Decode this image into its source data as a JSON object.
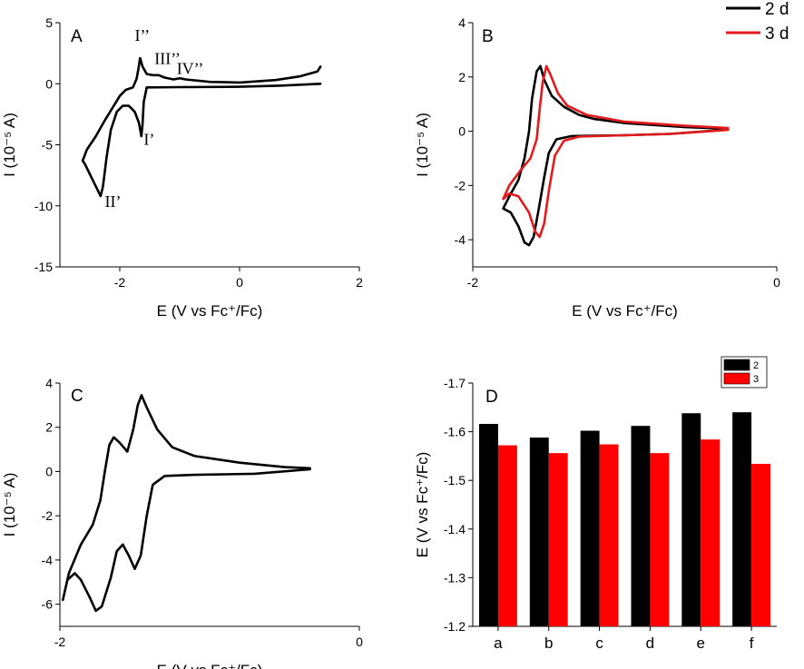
{
  "chart_data": [
    {
      "panel": "A",
      "type": "line",
      "xlabel": "E (V vs Fc⁺/Fc)",
      "ylabel": "I (10⁻⁵ A)",
      "xlim": [
        -3.0,
        2.0
      ],
      "ylim": [
        -15,
        5
      ],
      "xticks": [
        -2,
        0,
        2
      ],
      "xtick_labels": [
        "-2",
        "0",
        "2"
      ],
      "yticks": [
        5,
        0,
        -5,
        -10,
        -15
      ],
      "ytick_labels": [
        "5",
        "0",
        "-5",
        "-10",
        "-15"
      ],
      "annotations": [
        {
          "text": "I’’",
          "x": -1.75,
          "y": 3.5
        },
        {
          "text": "III’’",
          "x": -1.42,
          "y": 1.6
        },
        {
          "text": "IV’’",
          "x": -1.05,
          "y": 0.8
        },
        {
          "text": "I’",
          "x": -1.6,
          "y": -5.0
        },
        {
          "text": "II’",
          "x": -2.25,
          "y": -10.1
        }
      ],
      "series": [
        {
          "name": "CV",
          "color": "#000000",
          "points": [
            [
              1.35,
              0.0
            ],
            [
              0.7,
              -0.15
            ],
            [
              0.0,
              -0.25
            ],
            [
              -1.0,
              -0.28
            ],
            [
              -1.55,
              -0.3
            ],
            [
              -1.6,
              -1.5
            ],
            [
              -1.62,
              -3.3
            ],
            [
              -1.64,
              -4.3
            ],
            [
              -1.68,
              -3.2
            ],
            [
              -1.75,
              -2.3
            ],
            [
              -1.85,
              -1.8
            ],
            [
              -1.95,
              -1.8
            ],
            [
              -2.05,
              -2.3
            ],
            [
              -2.15,
              -3.8
            ],
            [
              -2.22,
              -6.0
            ],
            [
              -2.28,
              -8.4
            ],
            [
              -2.32,
              -9.2
            ],
            [
              -2.38,
              -8.6
            ],
            [
              -2.48,
              -7.6
            ],
            [
              -2.58,
              -6.6
            ],
            [
              -2.62,
              -6.3
            ],
            [
              -2.55,
              -5.4
            ],
            [
              -2.4,
              -4.3
            ],
            [
              -2.25,
              -3.0
            ],
            [
              -2.1,
              -1.8
            ],
            [
              -2.0,
              -1.0
            ],
            [
              -1.9,
              -0.5
            ],
            [
              -1.78,
              -0.3
            ],
            [
              -1.72,
              0.4
            ],
            [
              -1.69,
              1.2
            ],
            [
              -1.66,
              2.1
            ],
            [
              -1.62,
              1.4
            ],
            [
              -1.55,
              0.8
            ],
            [
              -1.45,
              0.7
            ],
            [
              -1.35,
              0.7
            ],
            [
              -1.25,
              0.5
            ],
            [
              -1.1,
              0.35
            ],
            [
              -1.0,
              0.45
            ],
            [
              -0.9,
              0.35
            ],
            [
              -0.5,
              0.15
            ],
            [
              0.0,
              0.1
            ],
            [
              0.6,
              0.3
            ],
            [
              1.0,
              0.6
            ],
            [
              1.3,
              1.0
            ],
            [
              1.35,
              1.4
            ]
          ]
        }
      ]
    },
    {
      "panel": "B",
      "type": "line",
      "xlabel": "E (V vs Fc⁺/Fc)",
      "ylabel": "I (10⁻⁵ A)",
      "xlim": [
        -2.0,
        0.0
      ],
      "ylim": [
        -5,
        4
      ],
      "xticks": [
        -2,
        0
      ],
      "xtick_labels": [
        "-2",
        "0"
      ],
      "yticks": [
        4,
        2,
        0,
        -2,
        -4
      ],
      "ytick_labels": [
        "4",
        "2",
        "0",
        "-2",
        "-4"
      ],
      "legend": {
        "position": "top-right",
        "entries": [
          {
            "label": "2 d",
            "color": "#000000"
          },
          {
            "label": "3 d",
            "color": "#e31a1c"
          }
        ]
      },
      "series": [
        {
          "name": "2 d",
          "color": "#000000",
          "points": [
            [
              -0.35,
              0.05
            ],
            [
              -0.7,
              -0.1
            ],
            [
              -1.0,
              -0.15
            ],
            [
              -1.35,
              -0.18
            ],
            [
              -1.45,
              -0.3
            ],
            [
              -1.5,
              -0.8
            ],
            [
              -1.53,
              -1.7
            ],
            [
              -1.57,
              -3.0
            ],
            [
              -1.6,
              -3.9
            ],
            [
              -1.63,
              -4.2
            ],
            [
              -1.66,
              -4.1
            ],
            [
              -1.7,
              -3.5
            ],
            [
              -1.75,
              -3.0
            ],
            [
              -1.8,
              -2.85
            ],
            [
              -1.75,
              -2.3
            ],
            [
              -1.7,
              -1.8
            ],
            [
              -1.66,
              -1.0
            ],
            [
              -1.63,
              0.0
            ],
            [
              -1.61,
              1.2
            ],
            [
              -1.58,
              2.2
            ],
            [
              -1.555,
              2.4
            ],
            [
              -1.53,
              1.9
            ],
            [
              -1.48,
              1.3
            ],
            [
              -1.4,
              0.9
            ],
            [
              -1.3,
              0.6
            ],
            [
              -1.2,
              0.45
            ],
            [
              -1.0,
              0.3
            ],
            [
              -0.6,
              0.15
            ],
            [
              -0.35,
              0.1
            ]
          ]
        },
        {
          "name": "3 d",
          "color": "#e31a1c",
          "points": [
            [
              -0.32,
              0.05
            ],
            [
              -0.7,
              -0.1
            ],
            [
              -1.0,
              -0.15
            ],
            [
              -1.3,
              -0.2
            ],
            [
              -1.4,
              -0.35
            ],
            [
              -1.46,
              -0.9
            ],
            [
              -1.5,
              -2.2
            ],
            [
              -1.53,
              -3.4
            ],
            [
              -1.56,
              -3.9
            ],
            [
              -1.59,
              -3.7
            ],
            [
              -1.63,
              -3.0
            ],
            [
              -1.7,
              -2.4
            ],
            [
              -1.76,
              -2.3
            ],
            [
              -1.8,
              -2.5
            ],
            [
              -1.76,
              -2.0
            ],
            [
              -1.68,
              -1.4
            ],
            [
              -1.62,
              -1.0
            ],
            [
              -1.58,
              -0.3
            ],
            [
              -1.56,
              0.8
            ],
            [
              -1.54,
              1.8
            ],
            [
              -1.515,
              2.4
            ],
            [
              -1.49,
              2.1
            ],
            [
              -1.44,
              1.4
            ],
            [
              -1.38,
              0.95
            ],
            [
              -1.25,
              0.6
            ],
            [
              -1.0,
              0.35
            ],
            [
              -0.6,
              0.2
            ],
            [
              -0.32,
              0.12
            ]
          ]
        }
      ]
    },
    {
      "panel": "C",
      "type": "line",
      "xlabel": "E (V vs Fc⁺/Fc)",
      "ylabel": "I (10⁻⁵ A)",
      "xlim": [
        -2.0,
        0.0
      ],
      "ylim": [
        -7,
        4
      ],
      "xticks": [
        -2,
        0
      ],
      "xtick_labels": [
        "-2",
        "0"
      ],
      "yticks": [
        4,
        2,
        0,
        -2,
        -4,
        -6
      ],
      "ytick_labels": [
        "4",
        "2",
        "0",
        "-2",
        "-4",
        "-6"
      ],
      "series": [
        {
          "name": "CV",
          "color": "#000000",
          "points": [
            [
              -0.33,
              0.1
            ],
            [
              -0.7,
              -0.1
            ],
            [
              -1.1,
              -0.15
            ],
            [
              -1.3,
              -0.2
            ],
            [
              -1.38,
              -0.6
            ],
            [
              -1.42,
              -2.0
            ],
            [
              -1.46,
              -3.8
            ],
            [
              -1.5,
              -4.4
            ],
            [
              -1.54,
              -3.8
            ],
            [
              -1.58,
              -3.3
            ],
            [
              -1.62,
              -3.6
            ],
            [
              -1.66,
              -4.8
            ],
            [
              -1.72,
              -6.1
            ],
            [
              -1.76,
              -6.3
            ],
            [
              -1.8,
              -5.7
            ],
            [
              -1.86,
              -4.9
            ],
            [
              -1.9,
              -4.6
            ],
            [
              -1.95,
              -4.9
            ],
            [
              -1.98,
              -5.8
            ],
            [
              -1.94,
              -4.6
            ],
            [
              -1.86,
              -3.3
            ],
            [
              -1.78,
              -2.4
            ],
            [
              -1.73,
              -1.3
            ],
            [
              -1.7,
              0.0
            ],
            [
              -1.67,
              1.2
            ],
            [
              -1.64,
              1.55
            ],
            [
              -1.6,
              1.3
            ],
            [
              -1.55,
              0.9
            ],
            [
              -1.51,
              1.9
            ],
            [
              -1.48,
              3.0
            ],
            [
              -1.455,
              3.45
            ],
            [
              -1.42,
              2.9
            ],
            [
              -1.35,
              1.9
            ],
            [
              -1.25,
              1.1
            ],
            [
              -1.1,
              0.7
            ],
            [
              -0.8,
              0.4
            ],
            [
              -0.5,
              0.2
            ],
            [
              -0.33,
              0.15
            ]
          ]
        }
      ]
    },
    {
      "panel": "D",
      "type": "bar",
      "xlabel": "",
      "ylabel": "E (V vs Fc⁺/Fc)",
      "ylim": [
        -1.2,
        -1.7
      ],
      "yticks": [
        -1.7,
        -1.6,
        -1.5,
        -1.4,
        -1.3,
        -1.2
      ],
      "ytick_labels": [
        "-1.7",
        "-1.6",
        "-1.5",
        "-1.4",
        "-1.3",
        "-1.2"
      ],
      "categories": [
        "a",
        "b",
        "c",
        "d",
        "e",
        "f"
      ],
      "legend": {
        "position": "top-right",
        "entries": [
          {
            "label": "2",
            "color": "#000000"
          },
          {
            "label": "3",
            "color": "#ff0000"
          }
        ]
      },
      "series": [
        {
          "name": "2",
          "color": "#000000",
          "values": [
            -1.616,
            -1.588,
            -1.602,
            -1.612,
            -1.638,
            -1.64
          ]
        },
        {
          "name": "3",
          "color": "#ff0000",
          "values": [
            -1.572,
            -1.556,
            -1.574,
            -1.556,
            -1.584,
            -1.534
          ]
        }
      ]
    }
  ]
}
